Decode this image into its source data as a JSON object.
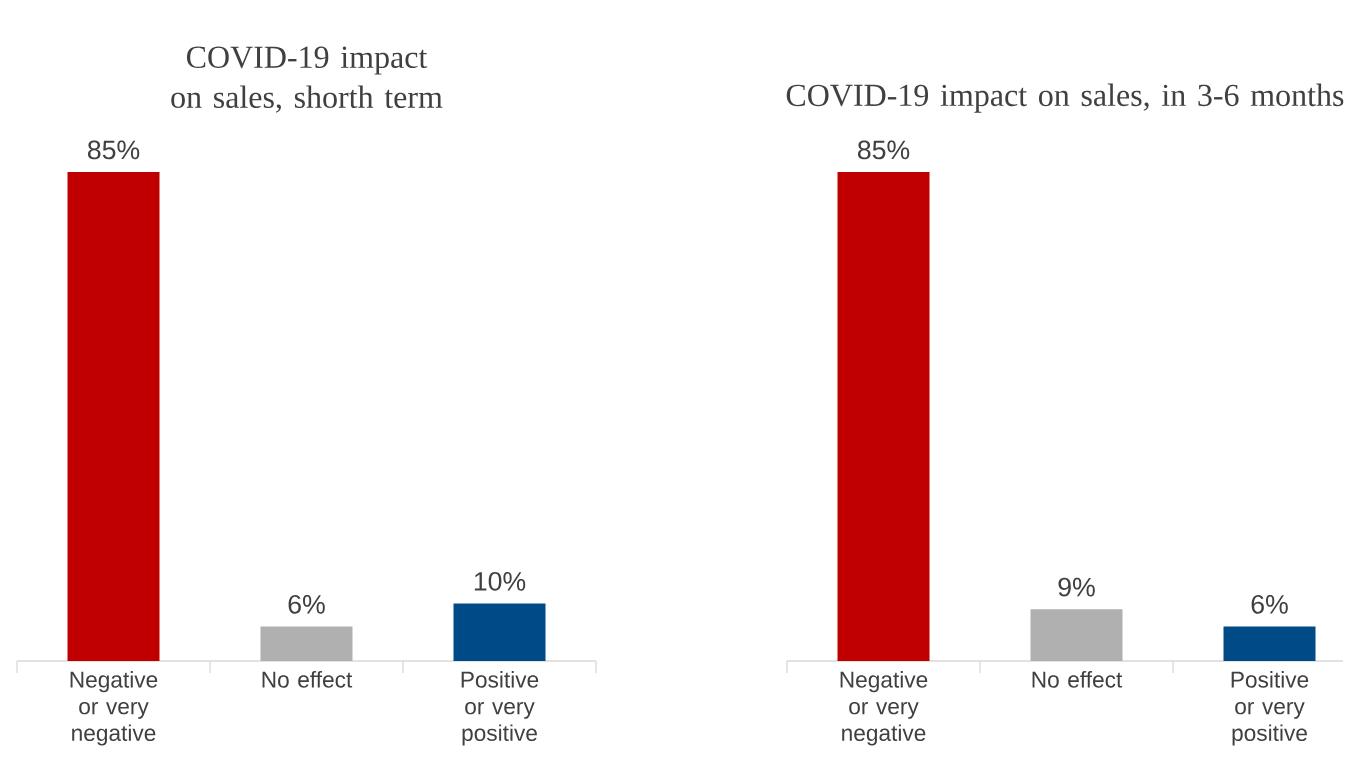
{
  "chart_data": [
    {
      "type": "bar",
      "title": "COVID-19 impact on sales, shorth term",
      "categories": [
        "Negative or very negative",
        "No effect",
        "Positive or very positive"
      ],
      "values": [
        85,
        6,
        10
      ],
      "colors": [
        "#c00000",
        "#b0b0b0",
        "#004b87"
      ],
      "value_labels": [
        "85%",
        "6%",
        "10%"
      ]
    },
    {
      "type": "bar",
      "title": "COVID-19 impact on sales, in 3-6 months",
      "categories": [
        "Negative or very negative",
        "No effect",
        "Positive or very positive"
      ],
      "values": [
        85,
        9,
        6
      ],
      "colors": [
        "#c00000",
        "#b0b0b0",
        "#004b87"
      ],
      "value_labels": [
        "85%",
        "9%",
        "6%"
      ]
    }
  ]
}
